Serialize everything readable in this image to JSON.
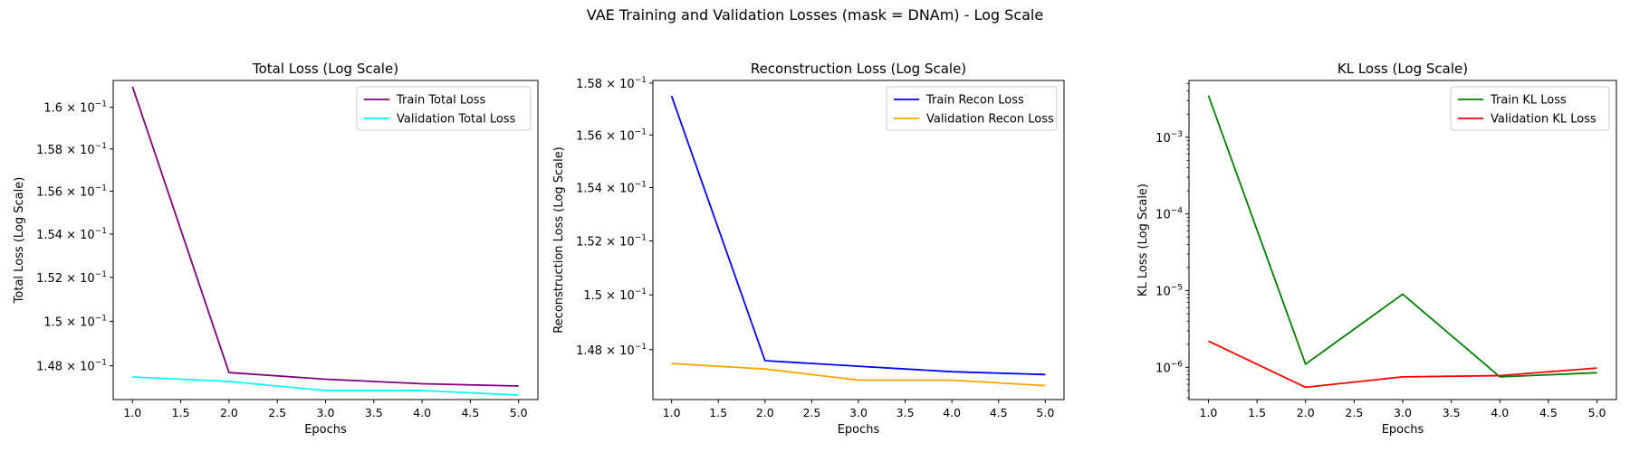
{
  "figure": {
    "suptitle": "VAE Training and Validation Losses (mask = DNAm) - Log Scale"
  },
  "chart_data": [
    {
      "type": "line",
      "title": "Total Loss (Log Scale)",
      "xlabel": "Epochs",
      "ylabel": "Total Loss (Log Scale)",
      "yscale": "log",
      "xlim": [
        0.8,
        5.2
      ],
      "ylim": [
        0.1465,
        0.1613
      ],
      "legend_position": "top-right",
      "grid": false,
      "x": [
        1,
        2,
        3,
        4,
        5
      ],
      "xticks": [
        1.0,
        1.5,
        2.0,
        2.5,
        3.0,
        3.5,
        4.0,
        4.5,
        5.0
      ],
      "xtick_labels": [
        "1.0",
        "1.5",
        "2.0",
        "2.5",
        "3.0",
        "3.5",
        "4.0",
        "4.5",
        "5.0"
      ],
      "yticks": [
        {
          "value": 0.148,
          "mantissa": "1.48"
        },
        {
          "value": 0.15,
          "mantissa": "1.5"
        },
        {
          "value": 0.152,
          "mantissa": "1.52"
        },
        {
          "value": 0.154,
          "mantissa": "1.54"
        },
        {
          "value": 0.156,
          "mantissa": "1.56"
        },
        {
          "value": 0.158,
          "mantissa": "1.58"
        },
        {
          "value": 0.16,
          "mantissa": "1.6"
        }
      ],
      "series": [
        {
          "name": "Train Total Loss",
          "color": "#800080",
          "values": [
            0.161,
            0.1477,
            0.1474,
            0.1472,
            0.1471
          ]
        },
        {
          "name": "Validation Total Loss",
          "color": "#00FFFF",
          "values": [
            0.1475,
            0.1473,
            0.1469,
            0.1469,
            0.1467
          ]
        }
      ]
    },
    {
      "type": "line",
      "title": "Reconstruction Loss (Log Scale)",
      "xlabel": "Epochs",
      "ylabel": "Reconstruction Loss (Log Scale)",
      "yscale": "log",
      "xlim": [
        0.8,
        5.2
      ],
      "ylim": [
        0.1462,
        0.1581
      ],
      "legend_position": "top-right",
      "grid": false,
      "x": [
        1,
        2,
        3,
        4,
        5
      ],
      "xticks": [
        1.0,
        1.5,
        2.0,
        2.5,
        3.0,
        3.5,
        4.0,
        4.5,
        5.0
      ],
      "xtick_labels": [
        "1.0",
        "1.5",
        "2.0",
        "2.5",
        "3.0",
        "3.5",
        "4.0",
        "4.5",
        "5.0"
      ],
      "yticks": [
        {
          "value": 0.148,
          "mantissa": "1.48"
        },
        {
          "value": 0.15,
          "mantissa": "1.5"
        },
        {
          "value": 0.152,
          "mantissa": "1.52"
        },
        {
          "value": 0.154,
          "mantissa": "1.54"
        },
        {
          "value": 0.156,
          "mantissa": "1.56"
        },
        {
          "value": 0.158,
          "mantissa": "1.58"
        }
      ],
      "series": [
        {
          "name": "Train Recon Loss",
          "color": "#0000FF",
          "values": [
            0.1575,
            0.1476,
            0.1474,
            0.1472,
            0.1471
          ]
        },
        {
          "name": "Validation Recon Loss",
          "color": "#FFA500",
          "values": [
            0.1475,
            0.1473,
            0.1469,
            0.1469,
            0.1467
          ]
        }
      ]
    },
    {
      "type": "line",
      "title": "KL Loss (Log Scale)",
      "xlabel": "Epochs",
      "ylabel": "KL Loss (Log Scale)",
      "yscale": "log",
      "xlim": [
        0.8,
        5.2
      ],
      "ylim": [
        3.8e-07,
        0.0055
      ],
      "legend_position": "top-right",
      "grid": false,
      "x": [
        1,
        2,
        3,
        4,
        5
      ],
      "xticks": [
        1.0,
        1.5,
        2.0,
        2.5,
        3.0,
        3.5,
        4.0,
        4.5,
        5.0
      ],
      "xtick_labels": [
        "1.0",
        "1.5",
        "2.0",
        "2.5",
        "3.0",
        "3.5",
        "4.0",
        "4.5",
        "5.0"
      ],
      "yticks": [
        {
          "value": 1e-06,
          "exponent": "−6"
        },
        {
          "value": 1e-05,
          "exponent": "−5"
        },
        {
          "value": 0.0001,
          "exponent": "−4"
        },
        {
          "value": 0.001,
          "exponent": "−3"
        }
      ],
      "series": [
        {
          "name": "Train KL Loss",
          "color": "#008000",
          "values": [
            0.0035,
            1.1e-06,
            9e-06,
            7.5e-07,
            8.5e-07
          ]
        },
        {
          "name": "Validation KL Loss",
          "color": "#FF0000",
          "values": [
            2.2e-06,
            5.5e-07,
            7.5e-07,
            7.8e-07,
            9.8e-07
          ]
        }
      ]
    }
  ]
}
